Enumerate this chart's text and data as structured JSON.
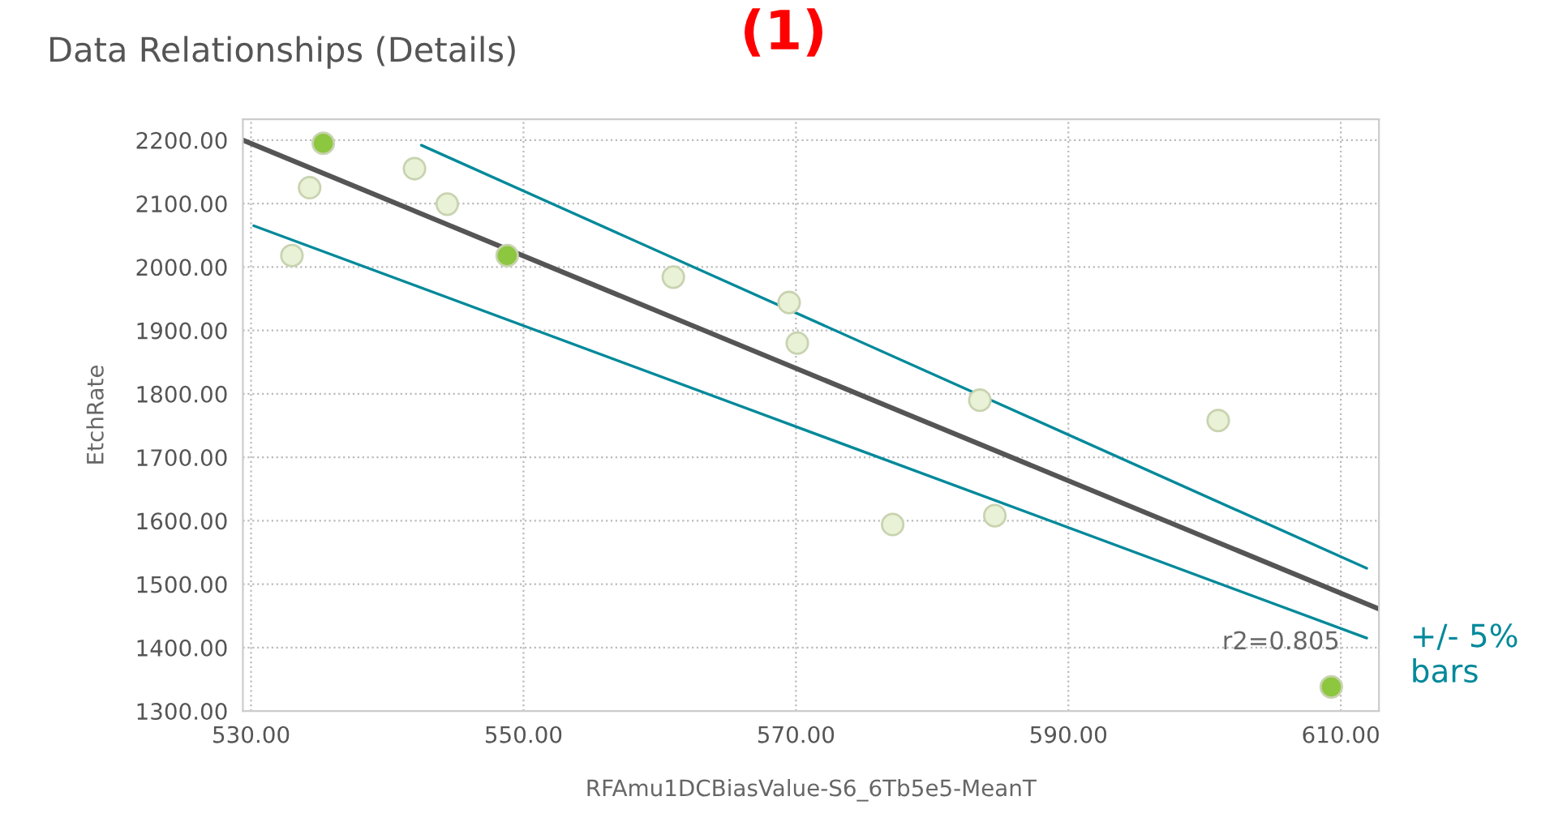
{
  "chart_data": {
    "type": "scatter",
    "title": "Data Relationships (Details)",
    "xlabel": "RFAmu1DCBiasValue-S6_6Tb5e5-MeanT",
    "ylabel": "EtchRate",
    "annotations": [
      "(1)",
      "r2=0.805",
      "+/- 5%\nbars"
    ],
    "series": [
      {
        "type": "scatter",
        "marker": "circle",
        "x": [
          535.3,
          534.3,
          533.0,
          542.0,
          544.4,
          548.8,
          561.0,
          569.5,
          570.1,
          583.5,
          577.1,
          584.6,
          601.0,
          609.3
        ],
        "values": [
          2195,
          2125,
          2018,
          2155,
          2099,
          2018,
          1984,
          1944,
          1880,
          1790,
          1594,
          1608,
          1758,
          1338
        ],
        "colors": [
          "#8dc63f",
          "#e9f2d6",
          "#e9f2d6",
          "#e9f2d6",
          "#e9f2d6",
          "#8dc63f",
          "#e9f2d6",
          "#e9f2d6",
          "#e9f2d6",
          "#e9f2d6",
          "#e9f2d6",
          "#e9f2d6",
          "#e9f2d6",
          "#8dc63f"
        ]
      },
      {
        "type": "line",
        "color": "#555555",
        "x": [
          529.4,
          612.8
        ],
        "values": [
          2200,
          1461
        ]
      },
      {
        "type": "line",
        "color": "#00899a",
        "x": [
          542.5,
          611.9
        ],
        "values": [
          2192,
          1525
        ]
      },
      {
        "type": "line",
        "color": "#00899a",
        "x": [
          530.2,
          611.9
        ],
        "values": [
          2065,
          1415
        ]
      }
    ],
    "xlim": [
      529.4,
      612.8
    ],
    "ylim": [
      1300,
      2233
    ],
    "xticks": [
      {
        "value": 530,
        "label": "530.00"
      },
      {
        "value": 550,
        "label": "550.00"
      },
      {
        "value": 570,
        "label": "570.00"
      },
      {
        "value": 590,
        "label": "590.00"
      },
      {
        "value": 610,
        "label": "610.00"
      }
    ],
    "yticks": [
      {
        "value": 1300,
        "label": "1300.00"
      },
      {
        "value": 1400,
        "label": "1400.00"
      },
      {
        "value": 1500,
        "label": "1500.00"
      },
      {
        "value": 1600,
        "label": "1600.00"
      },
      {
        "value": 1700,
        "label": "1700.00"
      },
      {
        "value": 1800,
        "label": "1800.00"
      },
      {
        "value": 1900,
        "label": "1900.00"
      },
      {
        "value": 2000,
        "label": "2000.00"
      },
      {
        "value": 2100,
        "label": "2100.00"
      },
      {
        "value": 2200,
        "label": "2200.00"
      }
    ],
    "grid": true
  }
}
